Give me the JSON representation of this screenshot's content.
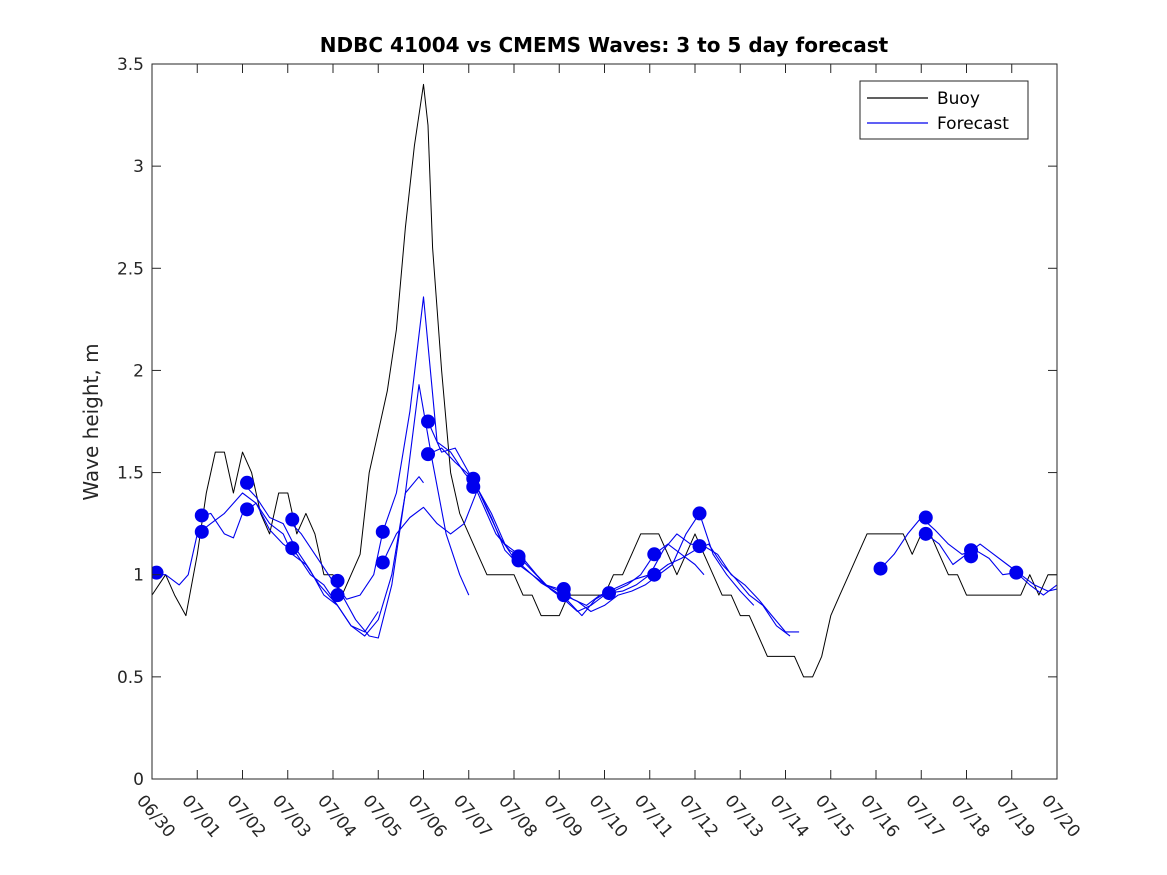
{
  "chart_data": {
    "type": "line",
    "title": "NDBC 41004 vs CMEMS Waves: 3 to 5 day forecast",
    "xlabel": "",
    "ylabel": "Wave height, m",
    "x_tick_labels": [
      "06/30",
      "07/01",
      "07/02",
      "07/03",
      "07/04",
      "07/05",
      "07/06",
      "07/07",
      "07/08",
      "07/09",
      "07/10",
      "07/11",
      "07/12",
      "07/13",
      "07/14",
      "07/15",
      "07/16",
      "07/17",
      "07/18",
      "07/19",
      "07/20"
    ],
    "x_unit": "days since 06/30",
    "xlim": [
      0,
      20
    ],
    "ylim": [
      0,
      3.5
    ],
    "y_ticks": [
      0,
      0.5,
      1,
      1.5,
      2,
      2.5,
      3,
      3.5
    ],
    "y_tick_labels": [
      "0",
      "0.5",
      "1",
      "1.5",
      "2",
      "2.5",
      "3",
      "3.5"
    ],
    "grid": false,
    "legend": {
      "placement": "top-right",
      "entries": [
        {
          "name": "Buoy",
          "color": "#000000"
        },
        {
          "name": "Forecast",
          "color": "#0000ee"
        }
      ]
    },
    "series": [
      {
        "name": "Buoy",
        "color": "#000000",
        "x": [
          0,
          0.3,
          0.5,
          0.75,
          1.0,
          1.2,
          1.4,
          1.6,
          1.8,
          2.0,
          2.2,
          2.4,
          2.6,
          2.8,
          3.0,
          3.2,
          3.4,
          3.6,
          3.8,
          4.0,
          4.2,
          4.4,
          4.6,
          4.8,
          5.0,
          5.2,
          5.4,
          5.6,
          5.8,
          6.0,
          6.1,
          6.2,
          6.4,
          6.6,
          6.8,
          7.0,
          7.2,
          7.4,
          7.6,
          7.8,
          8.0,
          8.2,
          8.4,
          8.6,
          8.8,
          9.0,
          9.2,
          9.4,
          9.6,
          9.8,
          10.0,
          10.2,
          10.4,
          10.6,
          10.8,
          11.0,
          11.2,
          11.4,
          11.6,
          11.8,
          12.0,
          12.2,
          12.4,
          12.6,
          12.8,
          13.0,
          13.2,
          13.4,
          13.6,
          13.8,
          14.0,
          14.2,
          14.4,
          14.6,
          14.8,
          15.0,
          15.2,
          15.4,
          15.6,
          15.8,
          16.0,
          16.2,
          16.4,
          16.6,
          16.8,
          17.0,
          17.2,
          17.4,
          17.6,
          17.8,
          18.0,
          18.2,
          18.4,
          18.6,
          18.8,
          19.0,
          19.2,
          19.4,
          19.6,
          19.8,
          20.0
        ],
        "y": [
          0.9,
          1.0,
          0.9,
          0.8,
          1.1,
          1.4,
          1.6,
          1.6,
          1.4,
          1.6,
          1.5,
          1.3,
          1.2,
          1.4,
          1.4,
          1.2,
          1.3,
          1.2,
          1.0,
          1.0,
          0.9,
          1.0,
          1.1,
          1.5,
          1.7,
          1.9,
          2.2,
          2.7,
          3.1,
          3.4,
          3.2,
          2.6,
          2.0,
          1.5,
          1.3,
          1.2,
          1.1,
          1.0,
          1.0,
          1.0,
          1.0,
          0.9,
          0.9,
          0.8,
          0.8,
          0.8,
          0.9,
          0.9,
          0.9,
          0.9,
          0.9,
          1.0,
          1.0,
          1.1,
          1.2,
          1.2,
          1.2,
          1.1,
          1.0,
          1.1,
          1.2,
          1.1,
          1.0,
          0.9,
          0.9,
          0.8,
          0.8,
          0.7,
          0.6,
          0.6,
          0.6,
          0.6,
          0.5,
          0.5,
          0.6,
          0.8,
          0.9,
          1.0,
          1.1,
          1.2,
          1.2,
          1.2,
          1.2,
          1.2,
          1.1,
          1.2,
          1.2,
          1.1,
          1.0,
          1.0,
          0.9,
          0.9,
          0.9,
          0.9,
          0.9,
          0.9,
          0.9,
          1.0,
          0.9,
          1.0,
          1.0
        ]
      },
      {
        "name": "Forecast",
        "color": "#0000ee",
        "x": [
          0,
          0.3,
          0.6,
          0.8,
          1.0,
          1.3,
          1.6,
          1.8,
          2.0,
          2.3,
          2.6,
          2.9,
          3.1,
          3.4,
          3.7,
          3.9,
          4.1
        ],
        "y": [
          1.0,
          1.0,
          0.95,
          1.0,
          1.2,
          1.25,
          1.3,
          1.35,
          1.4,
          1.35,
          1.25,
          1.2,
          1.1,
          1.05,
          0.95,
          0.9,
          0.85
        ]
      },
      {
        "name": "Forecast",
        "color": "#0000ee",
        "x": [
          1.0,
          1.3,
          1.6,
          1.8,
          2.0,
          2.3,
          2.6,
          2.9,
          3.2,
          3.5,
          3.8,
          4.1,
          4.4,
          4.7,
          5.0
        ],
        "y": [
          1.28,
          1.3,
          1.2,
          1.18,
          1.3,
          1.35,
          1.22,
          1.15,
          1.1,
          1.0,
          0.95,
          0.85,
          0.75,
          0.72,
          0.82
        ]
      },
      {
        "name": "Forecast",
        "color": "#0000ee",
        "x": [
          2.0,
          2.3,
          2.6,
          2.9,
          3.2,
          3.5,
          3.8,
          4.1,
          4.4,
          4.7,
          5.0,
          5.3,
          5.6,
          5.9,
          6.0
        ],
        "y": [
          1.45,
          1.38,
          1.28,
          1.25,
          1.12,
          1.02,
          0.9,
          0.85,
          0.75,
          0.7,
          0.78,
          1.0,
          1.4,
          1.48,
          1.45
        ]
      },
      {
        "name": "Forecast",
        "color": "#0000ee",
        "x": [
          3.0,
          3.3,
          3.6,
          3.9,
          4.2,
          4.5,
          4.8,
          5.0,
          5.3,
          5.6,
          5.9,
          6.2,
          6.5,
          6.8,
          7.0
        ],
        "y": [
          1.27,
          1.2,
          1.1,
          1.0,
          0.9,
          0.78,
          0.7,
          0.69,
          0.95,
          1.4,
          1.93,
          1.55,
          1.2,
          1.0,
          0.9
        ]
      },
      {
        "name": "Forecast",
        "color": "#0000ee",
        "x": [
          4.0,
          4.3,
          4.6,
          4.9,
          5.1,
          5.4,
          5.7,
          6.0,
          6.3,
          6.6,
          6.9,
          7.2,
          7.5,
          7.8,
          8.1
        ],
        "y": [
          0.97,
          0.88,
          0.9,
          1.0,
          1.21,
          1.4,
          1.8,
          2.36,
          1.65,
          1.6,
          1.5,
          1.42,
          1.3,
          1.15,
          1.1
        ]
      },
      {
        "name": "Forecast",
        "color": "#0000ee",
        "x": [
          5.1,
          5.4,
          5.7,
          6.0,
          6.3,
          6.6,
          6.9,
          7.2,
          7.5,
          7.8,
          8.1,
          8.4,
          8.7,
          9.0,
          9.2
        ],
        "y": [
          1.06,
          1.2,
          1.28,
          1.33,
          1.25,
          1.2,
          1.25,
          1.42,
          1.28,
          1.12,
          1.05,
          1.0,
          0.95,
          0.92,
          0.9
        ]
      },
      {
        "name": "Forecast",
        "color": "#0000ee",
        "x": [
          6.1,
          6.4,
          6.7,
          7.0,
          7.3,
          7.6,
          7.9,
          8.2,
          8.5,
          8.8,
          9.1,
          9.4,
          9.7,
          10.0,
          10.2
        ],
        "y": [
          1.75,
          1.6,
          1.62,
          1.5,
          1.35,
          1.2,
          1.12,
          1.08,
          1.0,
          0.93,
          0.88,
          0.82,
          0.85,
          0.9,
          0.92
        ]
      },
      {
        "name": "Forecast",
        "color": "#0000ee",
        "x": [
          6.1,
          6.4,
          6.7,
          7.1,
          7.4,
          7.7,
          8.0,
          8.3,
          8.6,
          8.9,
          9.2,
          9.5,
          9.8,
          10.1,
          10.4,
          10.7,
          11.0
        ],
        "y": [
          1.59,
          1.62,
          1.55,
          1.47,
          1.32,
          1.18,
          1.08,
          1.02,
          0.96,
          0.92,
          0.87,
          0.8,
          0.88,
          0.92,
          0.95,
          0.98,
          1.0
        ]
      },
      {
        "name": "Forecast",
        "color": "#0000ee",
        "x": [
          8.1,
          8.4,
          8.7,
          9.0,
          9.3,
          9.6,
          9.9,
          10.2,
          10.5,
          10.8,
          11.1,
          11.4,
          11.7,
          12.0,
          12.2
        ],
        "y": [
          1.09,
          1.02,
          0.95,
          0.93,
          0.88,
          0.85,
          0.9,
          0.92,
          0.95,
          1.0,
          1.1,
          1.15,
          1.1,
          1.05,
          1.0
        ]
      },
      {
        "name": "Forecast",
        "color": "#0000ee",
        "x": [
          9.1,
          9.4,
          9.7,
          10.0,
          10.3,
          10.6,
          10.9,
          11.2,
          11.5,
          11.8,
          12.1,
          12.4,
          12.7,
          13.0,
          13.3
        ],
        "y": [
          0.9,
          0.87,
          0.82,
          0.85,
          0.9,
          0.92,
          0.95,
          1.0,
          1.05,
          1.2,
          1.3,
          1.1,
          1.0,
          0.92,
          0.85
        ]
      },
      {
        "name": "Forecast",
        "color": "#0000ee",
        "x": [
          10.1,
          10.4,
          10.7,
          11.0,
          11.3,
          11.6,
          11.9,
          12.2,
          12.5,
          12.8,
          13.1,
          13.4,
          13.7,
          14.0,
          14.3
        ],
        "y": [
          0.91,
          0.92,
          0.95,
          1.0,
          1.12,
          1.2,
          1.15,
          1.14,
          1.1,
          1.0,
          0.95,
          0.88,
          0.8,
          0.72,
          0.72
        ]
      },
      {
        "name": "Forecast",
        "color": "#0000ee",
        "x": [
          11.1,
          11.4,
          11.7,
          12.0,
          12.3,
          12.6,
          12.9,
          13.2,
          13.5,
          13.8,
          14.1
        ],
        "y": [
          1.0,
          1.05,
          1.08,
          1.12,
          1.15,
          1.05,
          0.98,
          0.9,
          0.85,
          0.75,
          0.7
        ]
      },
      {
        "name": "Forecast",
        "color": "#0000ee",
        "x": [
          16.1,
          16.4,
          16.7,
          17.0,
          17.3,
          17.6,
          17.9,
          18.2,
          18.5,
          18.8,
          19.1,
          19.4,
          19.7,
          20.0
        ],
        "y": [
          1.03,
          1.1,
          1.2,
          1.28,
          1.22,
          1.15,
          1.1,
          1.12,
          1.08,
          1.0,
          1.01,
          0.95,
          0.9,
          0.95
        ]
      },
      {
        "name": "Forecast",
        "color": "#0000ee",
        "x": [
          17.1,
          17.4,
          17.7,
          18.0,
          18.3,
          18.6,
          18.9,
          19.2,
          19.5,
          19.8,
          20.0
        ],
        "y": [
          1.2,
          1.15,
          1.05,
          1.1,
          1.15,
          1.1,
          1.05,
          1.0,
          0.95,
          0.92,
          0.93
        ]
      }
    ],
    "markers": {
      "color": "#0000ee",
      "x": [
        0.1,
        1.1,
        1.1,
        2.1,
        2.1,
        3.1,
        3.1,
        4.1,
        4.1,
        5.1,
        5.1,
        6.1,
        6.1,
        7.1,
        7.1,
        8.1,
        8.1,
        9.1,
        9.1,
        10.1,
        11.1,
        11.1,
        12.1,
        12.1,
        16.1,
        17.1,
        17.1,
        18.1,
        18.1,
        19.1
      ],
      "y": [
        1.01,
        1.29,
        1.21,
        1.45,
        1.32,
        1.27,
        1.13,
        0.97,
        0.9,
        1.21,
        1.06,
        1.75,
        1.59,
        1.47,
        1.43,
        1.09,
        1.07,
        0.93,
        0.9,
        0.91,
        1.1,
        1.0,
        1.3,
        1.14,
        1.03,
        1.28,
        1.2,
        1.12,
        1.09,
        1.01
      ]
    }
  }
}
